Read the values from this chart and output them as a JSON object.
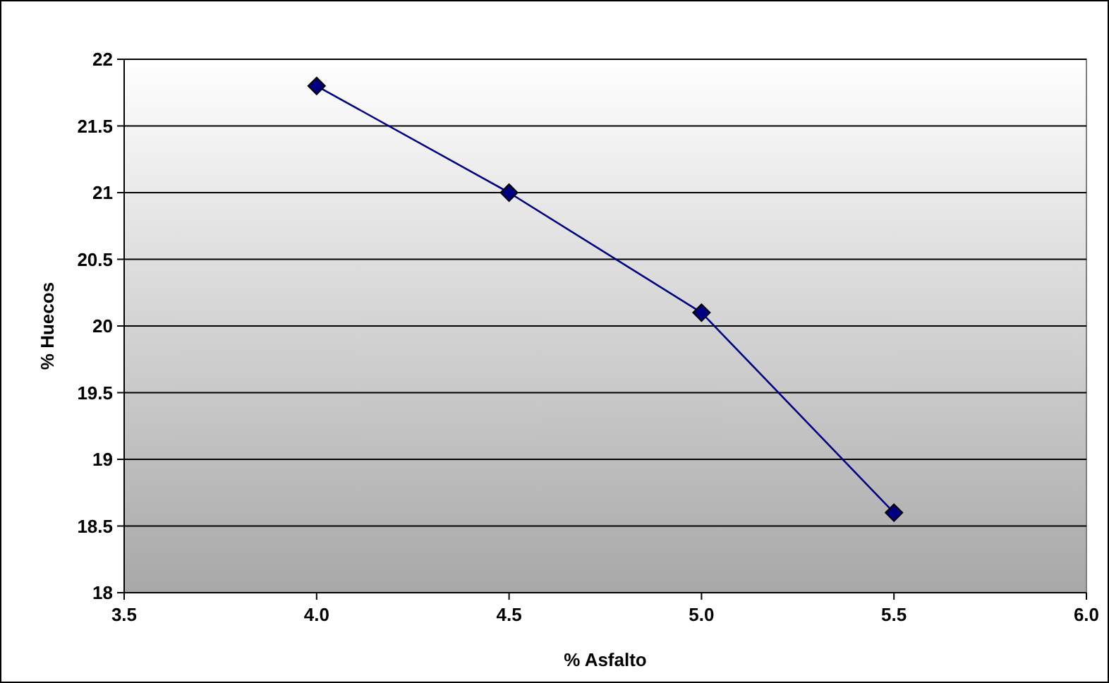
{
  "chart_data": {
    "type": "line",
    "xlabel": "% Asfalto",
    "ylabel": "% Huecos",
    "x": [
      4.0,
      4.5,
      5.0,
      5.5
    ],
    "series": [
      {
        "color": "#000080",
        "values": [
          21.8,
          21.0,
          20.1,
          18.6
        ]
      }
    ],
    "xlim": [
      3.5,
      6.0
    ],
    "xticks": [
      {
        "value": 3.5,
        "label": "3.5"
      },
      {
        "value": 4,
        "label": "4.0"
      },
      {
        "value": 4.5,
        "label": "4.5"
      },
      {
        "value": 5,
        "label": "5.0"
      },
      {
        "value": 5.5,
        "label": "5.5"
      },
      {
        "value": 6,
        "label": "6.0"
      }
    ],
    "ylim": [
      18,
      22
    ],
    "yticks": [
      18,
      18.5,
      19,
      19.5,
      20,
      20.5,
      21,
      21.5,
      22
    ],
    "grid": "y",
    "marker": "diamond",
    "line_style": "solid"
  }
}
